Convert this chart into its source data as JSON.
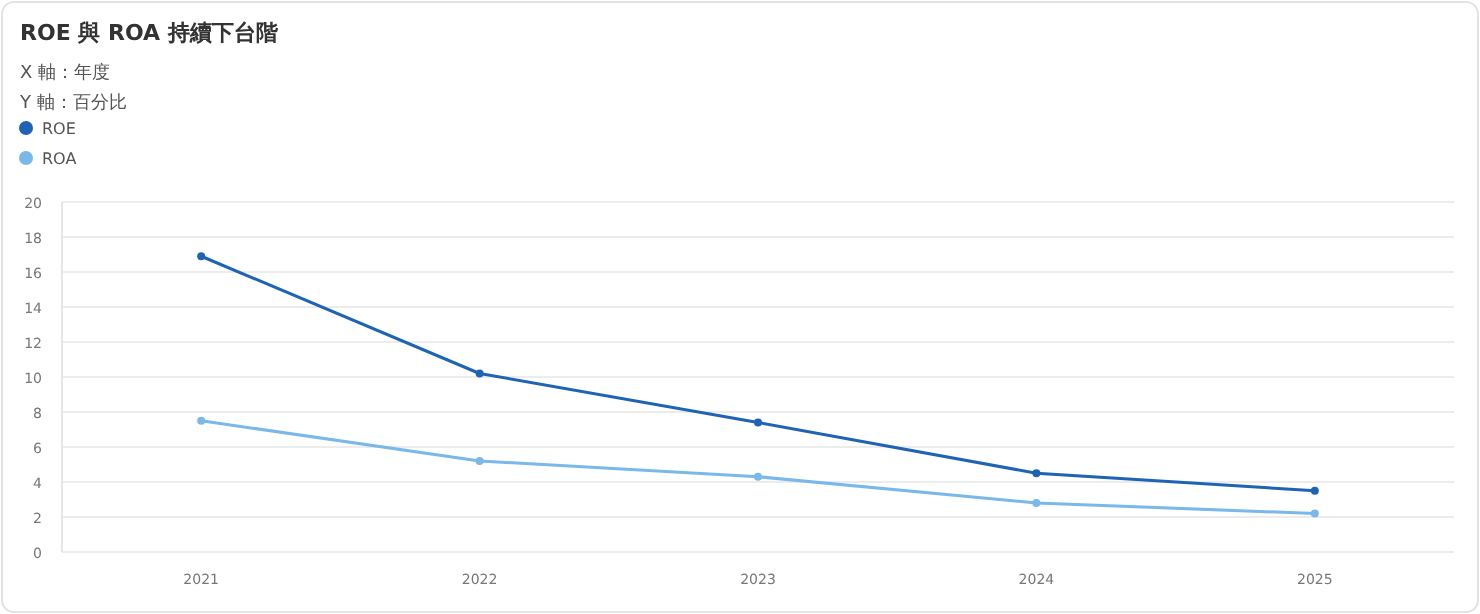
{
  "chart_data": {
    "type": "line",
    "title": "ROE 與 ROA 持續下台階",
    "annotations": [
      "X 軸：年度",
      "Y 軸：百分比"
    ],
    "categories": [
      "2021",
      "2022",
      "2023",
      "2024",
      "2025"
    ],
    "series": [
      {
        "name": "ROE",
        "color": "#1f63b5",
        "values": [
          16.9,
          10.2,
          7.4,
          4.5,
          3.5
        ]
      },
      {
        "name": "ROA",
        "color": "#7ab8ea",
        "values": [
          7.5,
          5.2,
          4.3,
          2.8,
          2.2
        ]
      }
    ],
    "ylim": [
      0,
      20
    ],
    "yticks": [
      0,
      2,
      4,
      6,
      8,
      10,
      12,
      14,
      16,
      18,
      20
    ],
    "grid": "y",
    "legend": "top left",
    "marker": "circle",
    "line_style": "solid"
  }
}
